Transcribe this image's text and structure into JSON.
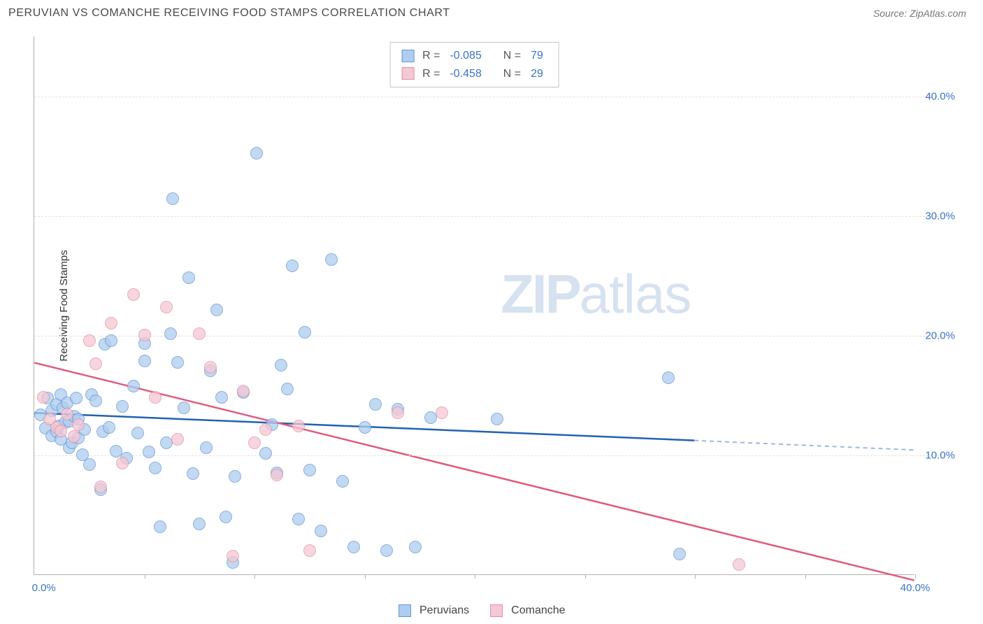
{
  "title": "PERUVIAN VS COMANCHE RECEIVING FOOD STAMPS CORRELATION CHART",
  "source_label": "Source: ZipAtlas.com",
  "ylabel": "Receiving Food Stamps",
  "watermark_bold": "ZIP",
  "watermark_rest": "atlas",
  "chart": {
    "type": "scatter",
    "xlim": [
      0,
      40
    ],
    "ylim": [
      0,
      45
    ],
    "y_gridlines": [
      10,
      20,
      30,
      40
    ],
    "y_tick_labels": [
      "10.0%",
      "20.0%",
      "30.0%",
      "40.0%"
    ],
    "x_ticks": [
      0,
      5,
      10,
      15,
      20,
      25,
      30,
      35,
      40
    ],
    "x_tick_labels": {
      "0": "0.0%",
      "40": "40.0%"
    },
    "grid_color": "#e2e2e2",
    "axis_color": "#b0b0b0",
    "tick_label_color": "#3973c6",
    "background_color": "#ffffff",
    "point_radius": 9,
    "series": [
      {
        "name": "Peruvians",
        "fill": "#aecdf0",
        "stroke": "#6795d1",
        "opacity": 0.75,
        "line_color": "#2262b0",
        "dash_color": "#9bb9de",
        "R": "-0.085",
        "N": "79",
        "regression": {
          "x1": 0,
          "y1": 13.5,
          "x2": 30,
          "y2": 11.2,
          "dash_x2": 40,
          "dash_y2": 10.4
        },
        "points": [
          [
            0.3,
            13.3
          ],
          [
            0.5,
            12.2
          ],
          [
            0.6,
            14.7
          ],
          [
            0.8,
            11.6
          ],
          [
            0.8,
            13.7
          ],
          [
            1.0,
            14.2
          ],
          [
            1.0,
            11.9
          ],
          [
            1.1,
            12.4
          ],
          [
            1.2,
            15.0
          ],
          [
            1.2,
            11.3
          ],
          [
            1.3,
            13.9
          ],
          [
            1.4,
            12.7
          ],
          [
            1.5,
            14.3
          ],
          [
            1.6,
            10.6
          ],
          [
            1.6,
            12.8
          ],
          [
            1.7,
            11.0
          ],
          [
            1.8,
            13.2
          ],
          [
            1.9,
            14.7
          ],
          [
            2.0,
            11.4
          ],
          [
            2.0,
            13.0
          ],
          [
            2.2,
            10.0
          ],
          [
            2.3,
            12.1
          ],
          [
            2.5,
            9.2
          ],
          [
            2.6,
            15.0
          ],
          [
            2.8,
            14.5
          ],
          [
            3.0,
            7.1
          ],
          [
            3.1,
            11.9
          ],
          [
            3.2,
            19.2
          ],
          [
            3.4,
            12.3
          ],
          [
            3.5,
            19.5
          ],
          [
            3.7,
            10.3
          ],
          [
            4.0,
            14.0
          ],
          [
            4.2,
            9.7
          ],
          [
            4.5,
            15.7
          ],
          [
            4.7,
            11.8
          ],
          [
            5.0,
            17.8
          ],
          [
            5.0,
            19.3
          ],
          [
            5.2,
            10.2
          ],
          [
            5.5,
            8.9
          ],
          [
            5.7,
            4.0
          ],
          [
            6.0,
            11.0
          ],
          [
            6.2,
            20.1
          ],
          [
            6.3,
            31.4
          ],
          [
            6.5,
            17.7
          ],
          [
            6.8,
            13.9
          ],
          [
            7.0,
            24.8
          ],
          [
            7.2,
            8.4
          ],
          [
            7.5,
            4.2
          ],
          [
            7.8,
            10.6
          ],
          [
            8.0,
            17.0
          ],
          [
            8.3,
            22.1
          ],
          [
            8.5,
            14.8
          ],
          [
            8.7,
            4.8
          ],
          [
            9.0,
            1.0
          ],
          [
            9.1,
            8.2
          ],
          [
            9.5,
            15.2
          ],
          [
            10.1,
            35.2
          ],
          [
            10.5,
            10.1
          ],
          [
            10.8,
            12.5
          ],
          [
            11.0,
            8.5
          ],
          [
            11.2,
            17.5
          ],
          [
            11.5,
            15.5
          ],
          [
            11.7,
            25.8
          ],
          [
            12.0,
            4.6
          ],
          [
            12.3,
            20.2
          ],
          [
            12.5,
            8.7
          ],
          [
            13.0,
            3.6
          ],
          [
            13.5,
            26.3
          ],
          [
            14.0,
            7.8
          ],
          [
            14.5,
            2.3
          ],
          [
            15.0,
            12.3
          ],
          [
            15.5,
            14.2
          ],
          [
            16.0,
            2.0
          ],
          [
            16.5,
            13.8
          ],
          [
            17.3,
            2.3
          ],
          [
            18.0,
            13.1
          ],
          [
            21.0,
            13.0
          ],
          [
            28.8,
            16.4
          ],
          [
            29.3,
            1.7
          ]
        ]
      },
      {
        "name": "Comanche",
        "fill": "#f4c8d4",
        "stroke": "#e68fa6",
        "opacity": 0.75,
        "line_color": "#e05a7c",
        "R": "-0.458",
        "N": "29",
        "regression": {
          "x1": 0,
          "y1": 17.7,
          "x2": 40,
          "y2": -0.5
        },
        "points": [
          [
            0.4,
            14.8
          ],
          [
            0.7,
            13.0
          ],
          [
            1.0,
            12.3
          ],
          [
            1.2,
            12.0
          ],
          [
            1.5,
            13.4
          ],
          [
            1.8,
            11.5
          ],
          [
            2.0,
            12.5
          ],
          [
            2.5,
            19.5
          ],
          [
            2.8,
            17.6
          ],
          [
            3.0,
            7.3
          ],
          [
            3.5,
            21.0
          ],
          [
            4.0,
            9.3
          ],
          [
            4.5,
            23.4
          ],
          [
            5.0,
            20.0
          ],
          [
            5.5,
            14.8
          ],
          [
            6.0,
            22.3
          ],
          [
            6.5,
            11.3
          ],
          [
            7.5,
            20.1
          ],
          [
            8.0,
            17.3
          ],
          [
            9.0,
            1.5
          ],
          [
            9.5,
            15.3
          ],
          [
            10.0,
            11.0
          ],
          [
            10.5,
            12.1
          ],
          [
            11.0,
            8.3
          ],
          [
            12.0,
            12.4
          ],
          [
            12.5,
            2.0
          ],
          [
            16.5,
            13.5
          ],
          [
            18.5,
            13.5
          ],
          [
            32.0,
            0.8
          ]
        ]
      }
    ]
  },
  "legend_top_rows": [
    {
      "swatch_fill": "#aecdf0",
      "swatch_stroke": "#6795d1",
      "r_label": "R =",
      "r_val": "-0.085",
      "n_label": "N =",
      "n_val": "79"
    },
    {
      "swatch_fill": "#f4c8d4",
      "swatch_stroke": "#e68fa6",
      "r_label": "R =",
      "r_val": "-0.458",
      "n_label": "N =",
      "n_val": "29"
    }
  ],
  "legend_bottom": [
    {
      "swatch_fill": "#aecdf0",
      "swatch_stroke": "#6795d1",
      "label": "Peruvians"
    },
    {
      "swatch_fill": "#f4c8d4",
      "swatch_stroke": "#e68fa6",
      "label": "Comanche"
    }
  ]
}
